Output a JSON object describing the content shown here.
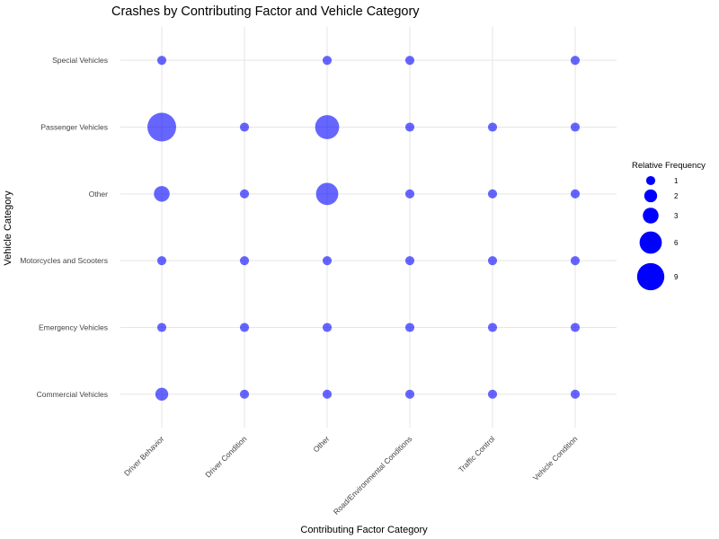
{
  "chart_data": {
    "type": "scatter",
    "title": "Crashes by Contributing Factor and Vehicle Category",
    "xlabel": "Contributing Factor Category",
    "ylabel": "Vehicle Category",
    "x_categories": [
      "Driver Behavior",
      "Driver Condition",
      "Other",
      "Road/Environmental Conditions",
      "Traffic Control",
      "Vehicle Condition"
    ],
    "y_categories": [
      "Commercial Vehicles",
      "Emergency Vehicles",
      "Motorcycles and Scooters",
      "Other",
      "Passenger Vehicles",
      "Special Vehicles"
    ],
    "size_legend": {
      "title": "Relative Frequency",
      "values": [
        1,
        2,
        3,
        6,
        9
      ]
    },
    "point_color": "#0000ff",
    "legend_color": "#0000ff",
    "point_opacity": 0.6,
    "grid": true,
    "legend_position": "right",
    "points": [
      {
        "x": "Driver Behavior",
        "y": "Special Vehicles",
        "value": 1
      },
      {
        "x": "Other",
        "y": "Special Vehicles",
        "value": 1
      },
      {
        "x": "Road/Environmental Conditions",
        "y": "Special Vehicles",
        "value": 1
      },
      {
        "x": "Vehicle Condition",
        "y": "Special Vehicles",
        "value": 1
      },
      {
        "x": "Driver Behavior",
        "y": "Passenger Vehicles",
        "value": 10
      },
      {
        "x": "Driver Condition",
        "y": "Passenger Vehicles",
        "value": 1
      },
      {
        "x": "Other",
        "y": "Passenger Vehicles",
        "value": 7
      },
      {
        "x": "Road/Environmental Conditions",
        "y": "Passenger Vehicles",
        "value": 1
      },
      {
        "x": "Traffic Control",
        "y": "Passenger Vehicles",
        "value": 1
      },
      {
        "x": "Vehicle Condition",
        "y": "Passenger Vehicles",
        "value": 1
      },
      {
        "x": "Driver Behavior",
        "y": "Other",
        "value": 3
      },
      {
        "x": "Driver Condition",
        "y": "Other",
        "value": 1
      },
      {
        "x": "Other",
        "y": "Other",
        "value": 6
      },
      {
        "x": "Road/Environmental Conditions",
        "y": "Other",
        "value": 1
      },
      {
        "x": "Traffic Control",
        "y": "Other",
        "value": 1
      },
      {
        "x": "Vehicle Condition",
        "y": "Other",
        "value": 1
      },
      {
        "x": "Driver Behavior",
        "y": "Motorcycles and Scooters",
        "value": 1
      },
      {
        "x": "Driver Condition",
        "y": "Motorcycles and Scooters",
        "value": 1
      },
      {
        "x": "Other",
        "y": "Motorcycles and Scooters",
        "value": 1
      },
      {
        "x": "Road/Environmental Conditions",
        "y": "Motorcycles and Scooters",
        "value": 1
      },
      {
        "x": "Traffic Control",
        "y": "Motorcycles and Scooters",
        "value": 1
      },
      {
        "x": "Vehicle Condition",
        "y": "Motorcycles and Scooters",
        "value": 1
      },
      {
        "x": "Driver Behavior",
        "y": "Emergency Vehicles",
        "value": 1
      },
      {
        "x": "Driver Condition",
        "y": "Emergency Vehicles",
        "value": 1
      },
      {
        "x": "Other",
        "y": "Emergency Vehicles",
        "value": 1
      },
      {
        "x": "Road/Environmental Conditions",
        "y": "Emergency Vehicles",
        "value": 1
      },
      {
        "x": "Traffic Control",
        "y": "Emergency Vehicles",
        "value": 1
      },
      {
        "x": "Vehicle Condition",
        "y": "Emergency Vehicles",
        "value": 1
      },
      {
        "x": "Driver Behavior",
        "y": "Commercial Vehicles",
        "value": 2
      },
      {
        "x": "Driver Condition",
        "y": "Commercial Vehicles",
        "value": 1
      },
      {
        "x": "Other",
        "y": "Commercial Vehicles",
        "value": 1
      },
      {
        "x": "Road/Environmental Conditions",
        "y": "Commercial Vehicles",
        "value": 1
      },
      {
        "x": "Traffic Control",
        "y": "Commercial Vehicles",
        "value": 1
      },
      {
        "x": "Vehicle Condition",
        "y": "Commercial Vehicles",
        "value": 1
      }
    ]
  }
}
